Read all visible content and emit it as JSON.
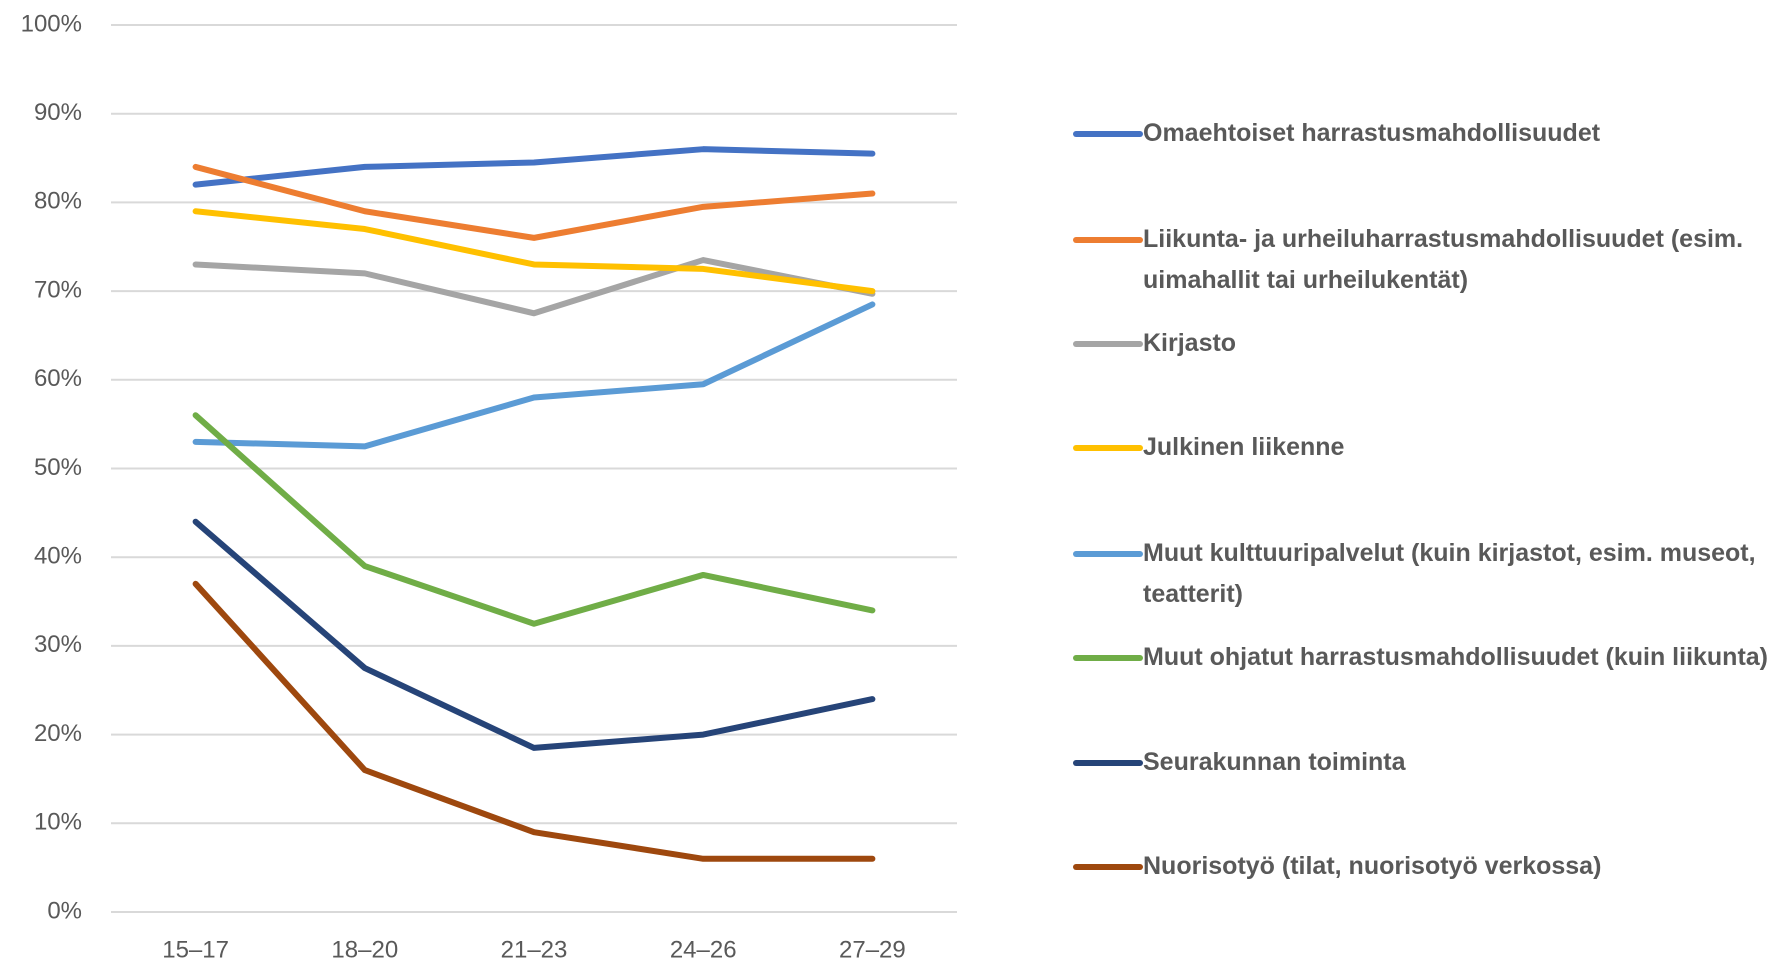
{
  "chart_data": {
    "type": "line",
    "categories": [
      "15–17",
      "18–20",
      "21–23",
      "24–26",
      "27–29"
    ],
    "ylim": [
      0,
      100
    ],
    "yticks": [
      {
        "value": 0,
        "label": "0%"
      },
      {
        "value": 10,
        "label": "10%"
      },
      {
        "value": 20,
        "label": "20%"
      },
      {
        "value": 30,
        "label": "30%"
      },
      {
        "value": 40,
        "label": "40%"
      },
      {
        "value": 50,
        "label": "50%"
      },
      {
        "value": 60,
        "label": "60%"
      },
      {
        "value": 70,
        "label": "70%"
      },
      {
        "value": 80,
        "label": "80%"
      },
      {
        "value": 90,
        "label": "90%"
      },
      {
        "value": 100,
        "label": "100%"
      }
    ],
    "grid": true,
    "legend": "right",
    "series": [
      {
        "name": "Omaehtoiset harrastusmahdollisuudet",
        "color": "#4472c4",
        "values": [
          82,
          84,
          84.5,
          86,
          85.5
        ]
      },
      {
        "name": "Liikunta- ja urheiluharrastusmahdollisuudet (esim. uimahallit tai urheilukentät)",
        "color": "#ed7d31",
        "values": [
          84,
          79,
          76,
          79.5,
          81
        ]
      },
      {
        "name": "Kirjasto",
        "color": "#a5a5a5",
        "values": [
          73,
          72,
          67.5,
          73.5,
          69.7
        ]
      },
      {
        "name": "Julkinen liikenne",
        "color": "#ffc000",
        "values": [
          79,
          77,
          73,
          72.5,
          70
        ]
      },
      {
        "name": "Muut kulttuuripalvelut (kuin kirjastot, esim. museot, teatterit)",
        "color": "#5b9bd5",
        "values": [
          53,
          52.5,
          58,
          59.5,
          68.5
        ]
      },
      {
        "name": "Muut ohjatut harrastusmahdollisuudet (kuin liikunta)",
        "color": "#70ad47",
        "values": [
          56,
          39,
          32.5,
          38,
          34
        ]
      },
      {
        "name": "Seurakunnan toiminta",
        "color": "#264478",
        "values": [
          44,
          27.5,
          18.5,
          20,
          24
        ]
      },
      {
        "name": "Nuorisotyö (tilat, nuorisotyö verkossa)",
        "color": "#9e480e",
        "values": [
          37,
          16,
          9,
          6,
          6
        ]
      }
    ]
  }
}
